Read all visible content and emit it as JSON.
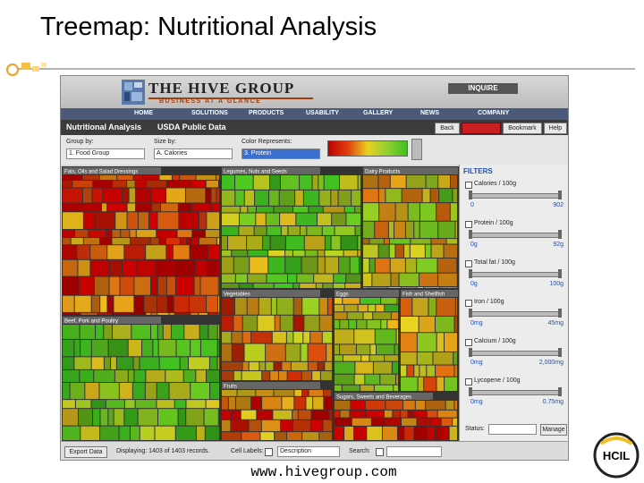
{
  "slide": {
    "title": "Treemap: Nutritional Analysis",
    "footer": "www.hivegroup.com",
    "logo": "HCIL"
  },
  "header": {
    "brand": "THE HIVE GROUP",
    "tagline": "BUSINESS AT A GLANCE",
    "inquire": "INQUIRE"
  },
  "nav": [
    "HOME",
    "SOLUTIONS",
    "PRODUCTS",
    "USABILITY",
    "GALLERY",
    "NEWS",
    "COMPANY"
  ],
  "app": {
    "title": "Nutritional Analysis",
    "subtitle": "USDA Public Data",
    "buttons": [
      "Back",
      "Bookmark",
      "Help"
    ]
  },
  "controls": [
    {
      "label": "Group by:",
      "value": "1. Food Group"
    },
    {
      "label": "Size by:",
      "value": "A. Calories"
    },
    {
      "label": "Color Represents:",
      "value": "3. Protein"
    }
  ],
  "treemap": {
    "groups": [
      "Fats, Oils and Salad Dressings",
      "Legumes, Nuts and Seeds",
      "Dairy Products",
      "Beef, Pork and Poultry",
      "Vegetables",
      "Eggs",
      "Fish and Shellfish",
      "Fruits",
      "Sugars, Sweets and Beverages"
    ]
  },
  "filters": {
    "title": "FILTERS",
    "items": [
      {
        "label": "Calories / 100g",
        "min": "0",
        "max": "902"
      },
      {
        "label": "Protein / 100g",
        "min": "0g",
        "max": "92g"
      },
      {
        "label": "Total fat / 100g",
        "min": "0g",
        "max": "100g"
      },
      {
        "label": "Iron / 100g",
        "min": "0mg",
        "max": "45mg"
      },
      {
        "label": "Calcium / 100g",
        "min": "0mg",
        "max": "2,000mg"
      },
      {
        "label": "Lycopene / 100g",
        "min": "0mg",
        "max": "0.75mg"
      }
    ],
    "status": "Status:",
    "manage": "Manage"
  },
  "bottom": {
    "export": "Export Data",
    "displaying": "Displaying: 1403 of 1403 records.",
    "cell_labels": "Cell Labels:",
    "label_value": "Description",
    "search": "Search:"
  }
}
